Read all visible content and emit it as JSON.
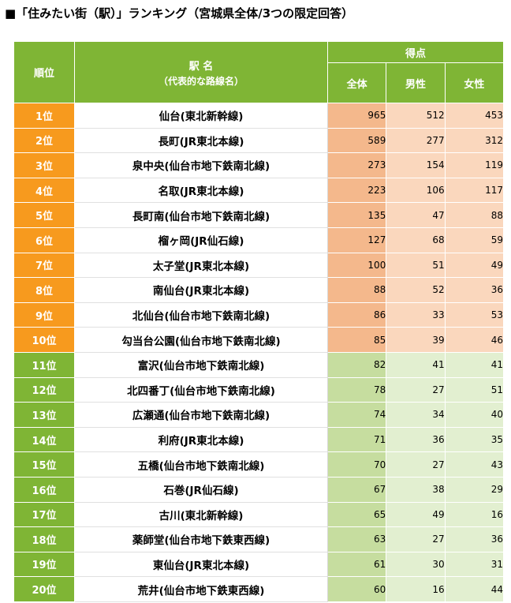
{
  "title": "■「住みたい街（駅）」ランキング（宮城県全体/3つの限定回答）",
  "table": {
    "headers": {
      "rank": "順位",
      "station": "駅 名",
      "station_sub": "（代表的な路線名）",
      "score_group": "得点",
      "total": "全体",
      "male": "男性",
      "female": "女性"
    },
    "rows": [
      {
        "rank": "1位",
        "station": "仙台(東北新幹線)",
        "total": "965",
        "male": "512",
        "female": "453"
      },
      {
        "rank": "2位",
        "station": "長町(JR東北本線)",
        "total": "589",
        "male": "277",
        "female": "312"
      },
      {
        "rank": "3位",
        "station": "泉中央(仙台市地下鉄南北線)",
        "total": "273",
        "male": "154",
        "female": "119"
      },
      {
        "rank": "4位",
        "station": "名取(JR東北本線)",
        "total": "223",
        "male": "106",
        "female": "117"
      },
      {
        "rank": "5位",
        "station": "長町南(仙台市地下鉄南北線)",
        "total": "135",
        "male": "47",
        "female": "88"
      },
      {
        "rank": "6位",
        "station": "榴ヶ岡(JR仙石線)",
        "total": "127",
        "male": "68",
        "female": "59"
      },
      {
        "rank": "7位",
        "station": "太子堂(JR東北本線)",
        "total": "100",
        "male": "51",
        "female": "49"
      },
      {
        "rank": "8位",
        "station": "南仙台(JR東北本線)",
        "total": "88",
        "male": "52",
        "female": "36"
      },
      {
        "rank": "9位",
        "station": "北仙台(仙台市地下鉄南北線)",
        "total": "86",
        "male": "33",
        "female": "53"
      },
      {
        "rank": "10位",
        "station": "勾当台公園(仙台市地下鉄南北線)",
        "total": "85",
        "male": "39",
        "female": "46"
      },
      {
        "rank": "11位",
        "station": "富沢(仙台市地下鉄南北線)",
        "total": "82",
        "male": "41",
        "female": "41"
      },
      {
        "rank": "12位",
        "station": "北四番丁(仙台市地下鉄南北線)",
        "total": "78",
        "male": "27",
        "female": "51"
      },
      {
        "rank": "13位",
        "station": "広瀬通(仙台市地下鉄南北線)",
        "total": "74",
        "male": "34",
        "female": "40"
      },
      {
        "rank": "14位",
        "station": "利府(JR東北本線)",
        "total": "71",
        "male": "36",
        "female": "35"
      },
      {
        "rank": "15位",
        "station": "五橋(仙台市地下鉄南北線)",
        "total": "70",
        "male": "27",
        "female": "43"
      },
      {
        "rank": "16位",
        "station": "石巻(JR仙石線)",
        "total": "67",
        "male": "38",
        "female": "29"
      },
      {
        "rank": "17位",
        "station": "古川(東北新幹線)",
        "total": "65",
        "male": "49",
        "female": "16"
      },
      {
        "rank": "18位",
        "station": "薬師堂(仙台市地下鉄東西線)",
        "total": "63",
        "male": "27",
        "female": "36"
      },
      {
        "rank": "19位",
        "station": "東仙台(JR東北本線)",
        "total": "61",
        "male": "30",
        "female": "31"
      },
      {
        "rank": "20位",
        "station": "荒井(仙台市地下鉄東西線)",
        "total": "60",
        "male": "16",
        "female": "44"
      }
    ]
  },
  "colors": {
    "header_green": "#7fb535",
    "rank_orange": "#f79a1e",
    "top_total": "#f4b88c",
    "top_sub": "#fad7bd",
    "low_total": "#c6dd9f",
    "low_sub": "#e2efd0"
  }
}
